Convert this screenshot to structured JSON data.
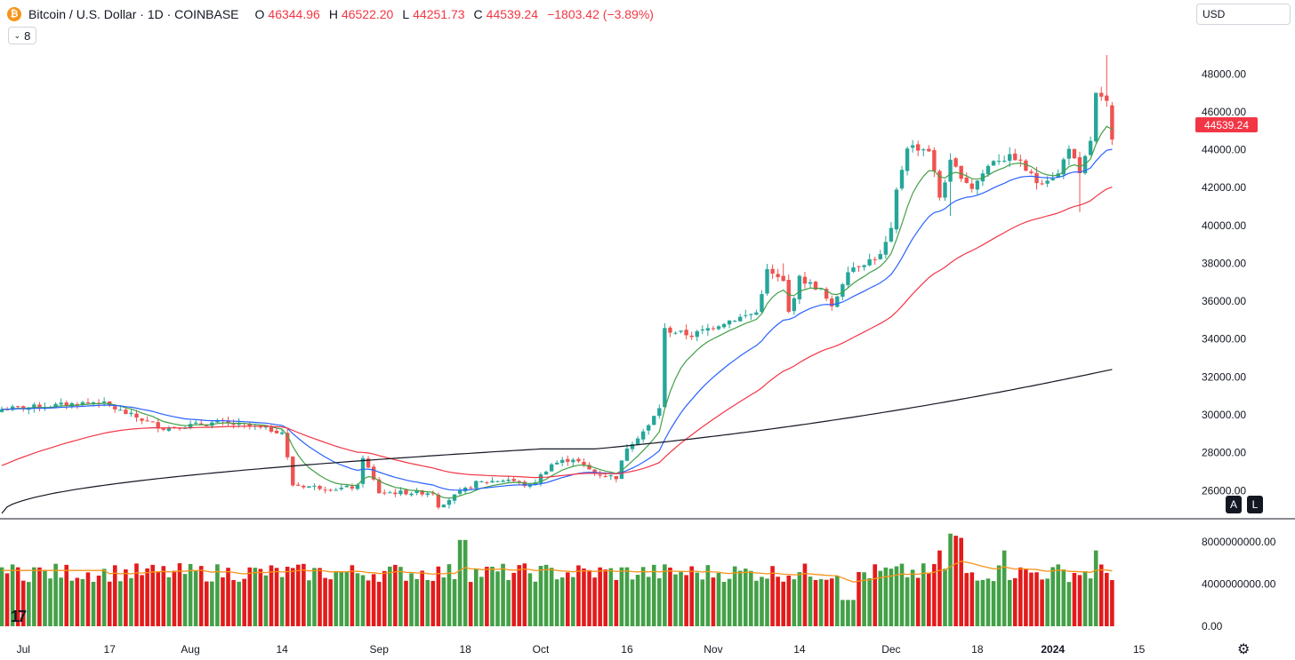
{
  "header": {
    "symbol": "Bitcoin / U.S. Dollar · 1D · COINBASE",
    "icon_letter": "₿",
    "open_label": "O",
    "open": "46344.96",
    "high_label": "H",
    "high": "46522.20",
    "low_label": "L",
    "low": "44251.73",
    "close_label": "C",
    "close": "44539.24",
    "change": "−1803.42 (−3.89%)"
  },
  "indicators_collapse": {
    "icon": "chevron-down-icon",
    "count": "8"
  },
  "currency_select": "USD",
  "last_price_tag": "44539.24",
  "badges": {
    "auto": "A",
    "log": "L"
  },
  "colors": {
    "up": "#26a69a",
    "down": "#ef5350",
    "vol_up": "#43a047",
    "vol_down": "#e31b1b",
    "ema_fast": "#43a047",
    "ema_mid": "#2962ff",
    "sma_50": "#f23645",
    "sma_200": "#131722",
    "vol_ma": "#f7931a",
    "price_tag": "#f23645"
  },
  "chart_data": {
    "type": "candlestick",
    "title": "Bitcoin / U.S. Dollar · 1D · COINBASE",
    "y_ticks": [
      "26000.00",
      "28000.00",
      "30000.00",
      "32000.00",
      "34000.00",
      "36000.00",
      "38000.00",
      "40000.00",
      "42000.00",
      "44000.00",
      "46000.00",
      "48000.00"
    ],
    "y_tick_values": [
      26000,
      28000,
      30000,
      32000,
      34000,
      36000,
      38000,
      40000,
      42000,
      44000,
      46000,
      48000
    ],
    "ylim": [
      24700,
      50500
    ],
    "x_ticks": [
      "Jul",
      "17",
      "Aug",
      "14",
      "Sep",
      "18",
      "Oct",
      "16",
      "Nov",
      "14",
      "Dec",
      "18",
      "2024",
      "15"
    ],
    "x_tick_day": [
      4,
      20,
      35,
      52,
      70,
      86,
      100,
      116,
      132,
      148,
      165,
      181,
      195,
      211
    ],
    "volume_y_ticks": [
      "0.00",
      "4000000000.00",
      "8000000000.00"
    ],
    "volume_y_tick_values": [
      0,
      4000000000,
      8000000000
    ],
    "volume_ylim": [
      0,
      9200000000
    ],
    "num_days": 207,
    "series": [
      {
        "name": "EMA fast",
        "color": "#43a047"
      },
      {
        "name": "EMA mid",
        "color": "#2962ff"
      },
      {
        "name": "SMA 50",
        "color": "#f23645"
      },
      {
        "name": "SMA 200",
        "color": "#131722"
      },
      {
        "name": "Volume MA",
        "color": "#f7931a"
      }
    ]
  }
}
